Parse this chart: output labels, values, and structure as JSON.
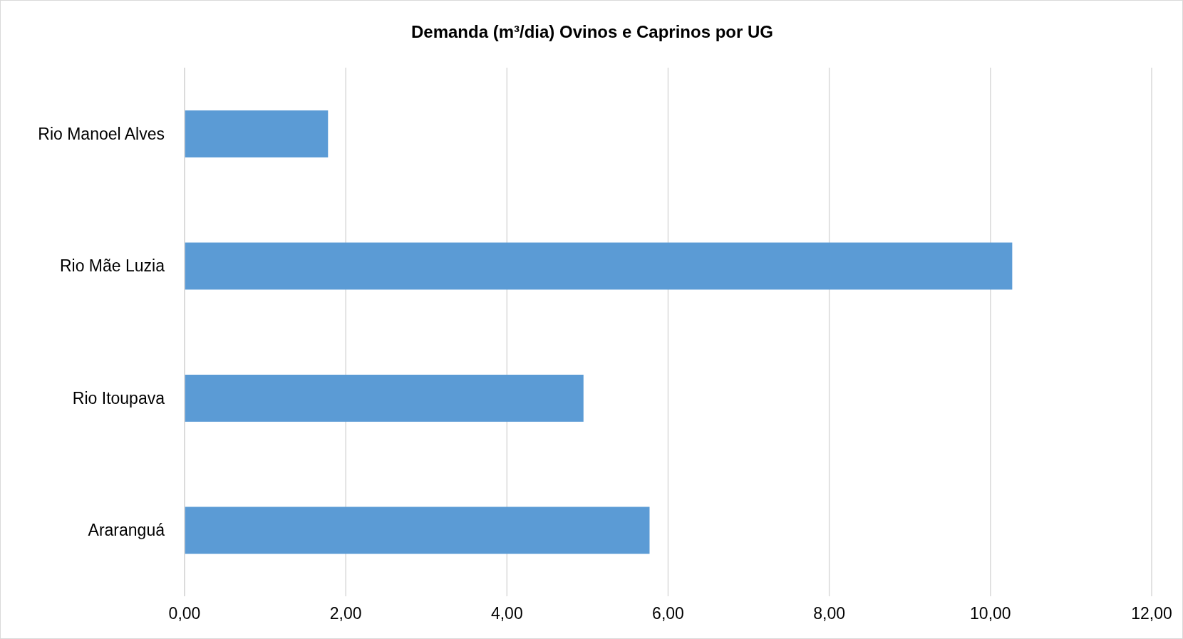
{
  "chart_data": {
    "type": "bar",
    "orientation": "horizontal",
    "title": "Demanda (m³/dia) Ovinos e Caprinos por UG",
    "categories": [
      "Rio Manoel Alves",
      "Rio Mãe Luzia",
      "Rio Itoupava",
      "Araranguá"
    ],
    "values": [
      1.78,
      10.27,
      4.95,
      5.77
    ],
    "color": "#5b9bd5",
    "xlim": [
      0,
      12
    ],
    "xticks": [
      {
        "value": 0,
        "label": "0,00"
      },
      {
        "value": 2,
        "label": "2,00"
      },
      {
        "value": 4,
        "label": "4,00"
      },
      {
        "value": 6,
        "label": "6,00"
      },
      {
        "value": 8,
        "label": "8,00"
      },
      {
        "value": 10,
        "label": "10,00"
      },
      {
        "value": 12,
        "label": "12,00"
      }
    ],
    "grid": "x",
    "legend": false
  }
}
